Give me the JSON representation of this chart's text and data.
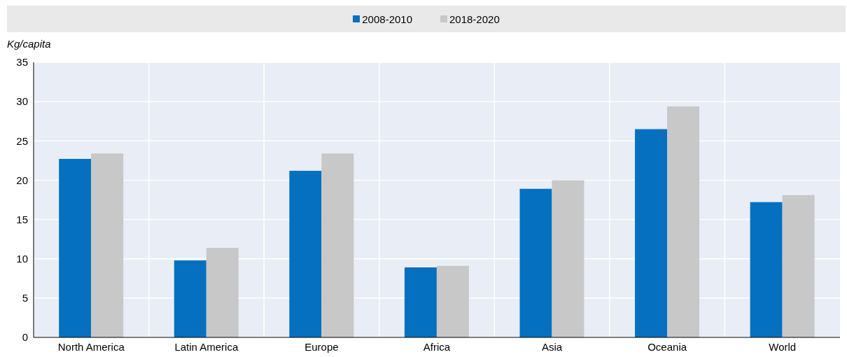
{
  "chart_data": {
    "type": "bar",
    "ylabel": "Kg/capita",
    "categories": [
      "North America",
      "Latin America",
      "Europe",
      "Africa",
      "Asia",
      "Oceania",
      "World"
    ],
    "series": [
      {
        "name": "2008-2010",
        "color": "#0570c0",
        "values": [
          22.7,
          9.8,
          21.2,
          8.9,
          18.9,
          26.5,
          17.2
        ]
      },
      {
        "name": "2018-2020",
        "color": "#c8c8c8",
        "values": [
          23.4,
          11.4,
          23.4,
          9.1,
          20.0,
          29.4,
          18.1
        ]
      }
    ],
    "ylim": [
      0,
      35
    ],
    "yticks": [
      0,
      5,
      10,
      15,
      20,
      25,
      30,
      35
    ],
    "grid": true,
    "legend": "top"
  }
}
